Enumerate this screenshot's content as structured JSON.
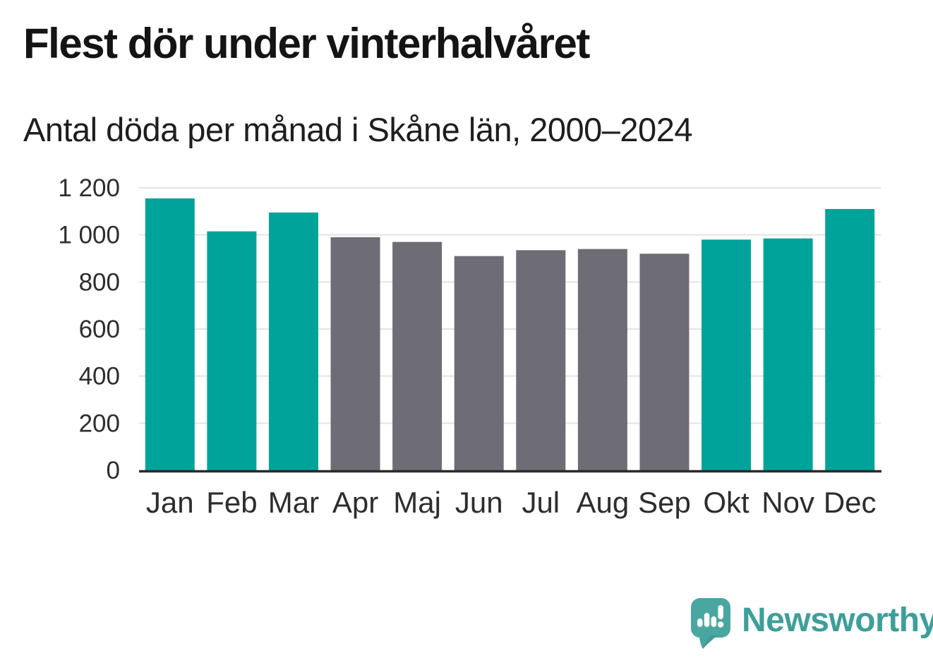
{
  "theme": {
    "bg": "#FFFFFF",
    "title-color": "#141414",
    "subtitle-color": "#1E1E1E",
    "axis-text": "#2D2D2D",
    "axis-line": "#2B2B2B",
    "grid": "#E3E3E3",
    "logo-bubble": "#4AA6A0",
    "logo-bubble-shade": "#3D928C",
    "logo-text": "#3E9F99"
  },
  "chart_data": {
    "type": "bar",
    "title": "Flest dör under vinterhalvåret",
    "subtitle": "Antal döda per månad i Skåne län, 2000–2024",
    "categories": [
      "Jan",
      "Feb",
      "Mar",
      "Apr",
      "Maj",
      "Jun",
      "Jul",
      "Aug",
      "Sep",
      "Okt",
      "Nov",
      "Dec"
    ],
    "values": [
      1155,
      1015,
      1095,
      990,
      970,
      910,
      935,
      940,
      920,
      980,
      985,
      1110
    ],
    "bar_colors": [
      "winter",
      "winter",
      "winter",
      "summer",
      "summer",
      "summer",
      "summer",
      "summer",
      "summer",
      "winter",
      "winter",
      "winter"
    ],
    "palette": {
      "winter": "#00A39A",
      "summer": "#6E6D75"
    },
    "ylim": [
      0,
      1200
    ],
    "yticks": [
      0,
      200,
      400,
      600,
      800,
      1000,
      1200
    ],
    "ytick_labels": [
      "0",
      "200",
      "400",
      "600",
      "800",
      "1 000",
      "1 200"
    ],
    "xlabel": "",
    "ylabel": "",
    "grid": true,
    "legend": "none"
  },
  "footer": {
    "brand": "Newsworthy",
    "logo_icon": "speech-bubble-bar-chart-exclamation"
  }
}
